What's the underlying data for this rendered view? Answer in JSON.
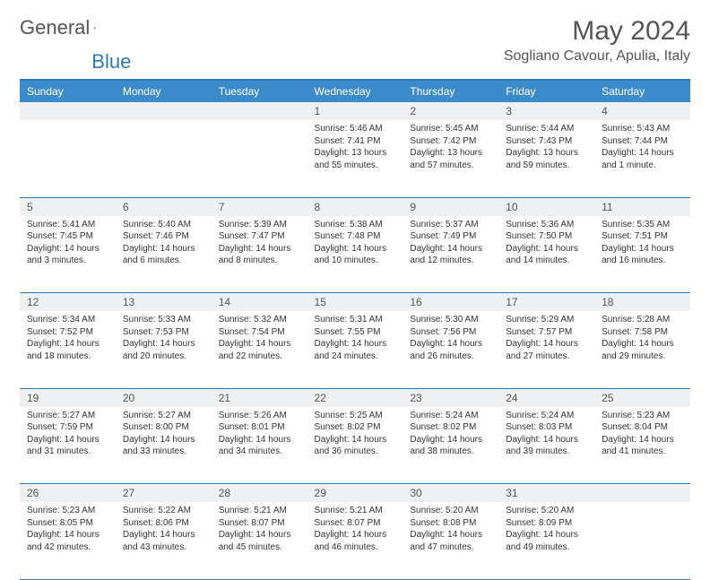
{
  "logo": {
    "text1": "General",
    "text2": "Blue"
  },
  "title": "May 2024",
  "location": "Sogliano Cavour, Apulia, Italy",
  "headers": [
    "Sunday",
    "Monday",
    "Tuesday",
    "Wednesday",
    "Thursday",
    "Friday",
    "Saturday"
  ],
  "header_bg": "#3b8aca",
  "accent": "#2a7ab8",
  "daynum_bg": "#eef0f2",
  "weeks": [
    [
      null,
      null,
      null,
      {
        "n": "1",
        "sr": "5:46 AM",
        "ss": "7:41 PM",
        "dl": "13 hours and 55 minutes."
      },
      {
        "n": "2",
        "sr": "5:45 AM",
        "ss": "7:42 PM",
        "dl": "13 hours and 57 minutes."
      },
      {
        "n": "3",
        "sr": "5:44 AM",
        "ss": "7:43 PM",
        "dl": "13 hours and 59 minutes."
      },
      {
        "n": "4",
        "sr": "5:43 AM",
        "ss": "7:44 PM",
        "dl": "14 hours and 1 minute."
      }
    ],
    [
      {
        "n": "5",
        "sr": "5:41 AM",
        "ss": "7:45 PM",
        "dl": "14 hours and 3 minutes."
      },
      {
        "n": "6",
        "sr": "5:40 AM",
        "ss": "7:46 PM",
        "dl": "14 hours and 6 minutes."
      },
      {
        "n": "7",
        "sr": "5:39 AM",
        "ss": "7:47 PM",
        "dl": "14 hours and 8 minutes."
      },
      {
        "n": "8",
        "sr": "5:38 AM",
        "ss": "7:48 PM",
        "dl": "14 hours and 10 minutes."
      },
      {
        "n": "9",
        "sr": "5:37 AM",
        "ss": "7:49 PM",
        "dl": "14 hours and 12 minutes."
      },
      {
        "n": "10",
        "sr": "5:36 AM",
        "ss": "7:50 PM",
        "dl": "14 hours and 14 minutes."
      },
      {
        "n": "11",
        "sr": "5:35 AM",
        "ss": "7:51 PM",
        "dl": "14 hours and 16 minutes."
      }
    ],
    [
      {
        "n": "12",
        "sr": "5:34 AM",
        "ss": "7:52 PM",
        "dl": "14 hours and 18 minutes."
      },
      {
        "n": "13",
        "sr": "5:33 AM",
        "ss": "7:53 PM",
        "dl": "14 hours and 20 minutes."
      },
      {
        "n": "14",
        "sr": "5:32 AM",
        "ss": "7:54 PM",
        "dl": "14 hours and 22 minutes."
      },
      {
        "n": "15",
        "sr": "5:31 AM",
        "ss": "7:55 PM",
        "dl": "14 hours and 24 minutes."
      },
      {
        "n": "16",
        "sr": "5:30 AM",
        "ss": "7:56 PM",
        "dl": "14 hours and 26 minutes."
      },
      {
        "n": "17",
        "sr": "5:29 AM",
        "ss": "7:57 PM",
        "dl": "14 hours and 27 minutes."
      },
      {
        "n": "18",
        "sr": "5:28 AM",
        "ss": "7:58 PM",
        "dl": "14 hours and 29 minutes."
      }
    ],
    [
      {
        "n": "19",
        "sr": "5:27 AM",
        "ss": "7:59 PM",
        "dl": "14 hours and 31 minutes."
      },
      {
        "n": "20",
        "sr": "5:27 AM",
        "ss": "8:00 PM",
        "dl": "14 hours and 33 minutes."
      },
      {
        "n": "21",
        "sr": "5:26 AM",
        "ss": "8:01 PM",
        "dl": "14 hours and 34 minutes."
      },
      {
        "n": "22",
        "sr": "5:25 AM",
        "ss": "8:02 PM",
        "dl": "14 hours and 36 minutes."
      },
      {
        "n": "23",
        "sr": "5:24 AM",
        "ss": "8:02 PM",
        "dl": "14 hours and 38 minutes."
      },
      {
        "n": "24",
        "sr": "5:24 AM",
        "ss": "8:03 PM",
        "dl": "14 hours and 39 minutes."
      },
      {
        "n": "25",
        "sr": "5:23 AM",
        "ss": "8:04 PM",
        "dl": "14 hours and 41 minutes."
      }
    ],
    [
      {
        "n": "26",
        "sr": "5:23 AM",
        "ss": "8:05 PM",
        "dl": "14 hours and 42 minutes."
      },
      {
        "n": "27",
        "sr": "5:22 AM",
        "ss": "8:06 PM",
        "dl": "14 hours and 43 minutes."
      },
      {
        "n": "28",
        "sr": "5:21 AM",
        "ss": "8:07 PM",
        "dl": "14 hours and 45 minutes."
      },
      {
        "n": "29",
        "sr": "5:21 AM",
        "ss": "8:07 PM",
        "dl": "14 hours and 46 minutes."
      },
      {
        "n": "30",
        "sr": "5:20 AM",
        "ss": "8:08 PM",
        "dl": "14 hours and 47 minutes."
      },
      {
        "n": "31",
        "sr": "5:20 AM",
        "ss": "8:09 PM",
        "dl": "14 hours and 49 minutes."
      },
      null
    ]
  ],
  "labels": {
    "sunrise": "Sunrise:",
    "sunset": "Sunset:",
    "daylight": "Daylight:"
  }
}
